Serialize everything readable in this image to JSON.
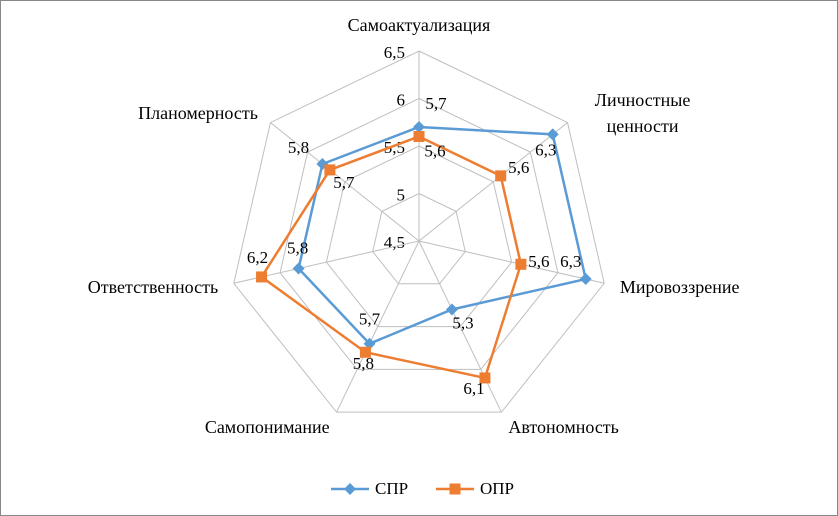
{
  "chart_data": {
    "type": "radar",
    "categories": [
      "Самоактуализация",
      "Личностные ценности",
      "Мировоззрение",
      "Автономность",
      "Самопонимание",
      "Ответственность",
      "Планомерность"
    ],
    "series": [
      {
        "name": "СПР",
        "color": "#5b9bd5",
        "marker": "diamond",
        "values": [
          5.7,
          6.3,
          6.3,
          5.3,
          5.7,
          5.8,
          5.8
        ],
        "value_labels": [
          "5,7",
          "6,3",
          "6,3",
          "5,3",
          "5,7",
          "5,8",
          "5,8"
        ]
      },
      {
        "name": "ОПР",
        "color": "#ed7d31",
        "marker": "square",
        "values": [
          5.6,
          5.6,
          5.6,
          6.1,
          5.8,
          6.2,
          5.7
        ],
        "value_labels": [
          "5,6",
          "5,6",
          "5,6",
          "6,1",
          "5,8",
          "6,2",
          "5,7"
        ]
      }
    ],
    "rlim": [
      4.5,
      6.5
    ],
    "rticks": [
      {
        "value": 4.5,
        "label": "4,5"
      },
      5,
      {
        "value": 5.5,
        "label": "5,5"
      },
      6,
      {
        "value": 6.5,
        "label": "6,5"
      }
    ],
    "grid": true,
    "legend": "bottom"
  }
}
